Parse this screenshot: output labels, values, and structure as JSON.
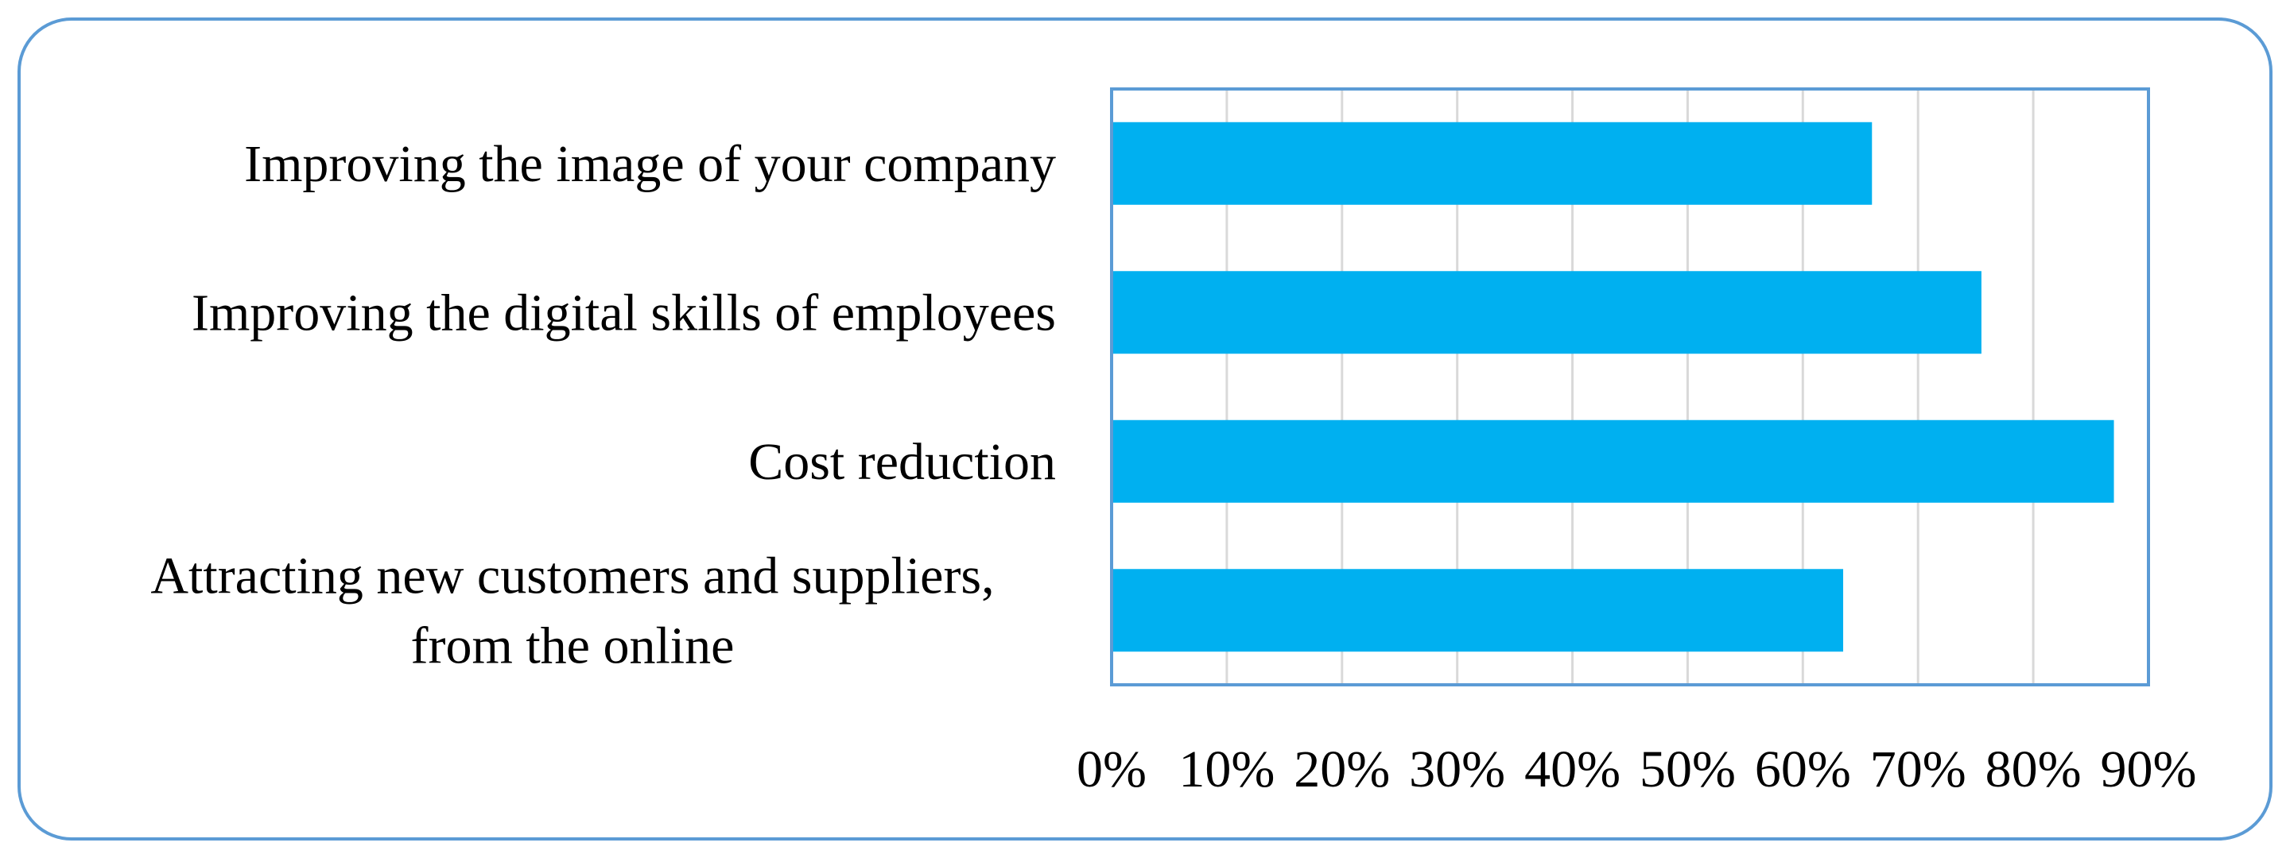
{
  "colors": {
    "bar": "#00b0f0",
    "frame": "#5b9bd5",
    "plot_border": "#5b9bd5",
    "grid": "#d9d9d9",
    "text": "#000000"
  },
  "chart_data": {
    "type": "bar",
    "orientation": "horizontal",
    "title": "",
    "xlabel": "",
    "ylabel": "",
    "categories": [
      [
        "Improving the image of your company"
      ],
      [
        "Improving the digital skills of employees"
      ],
      [
        "Cost reduction"
      ],
      [
        "Attracting new customers and suppliers,",
        "from the online"
      ]
    ],
    "values": [
      66,
      75.5,
      87,
      63.5
    ],
    "xlim": [
      0,
      90
    ],
    "x_ticks": [
      0,
      10,
      20,
      30,
      40,
      50,
      60,
      70,
      80,
      90
    ],
    "tick_labels": [
      "0%",
      "10%",
      "20%",
      "30%",
      "40%",
      "50%",
      "60%",
      "70%",
      "80%",
      "90%"
    ],
    "grid": true,
    "legend": "none"
  }
}
